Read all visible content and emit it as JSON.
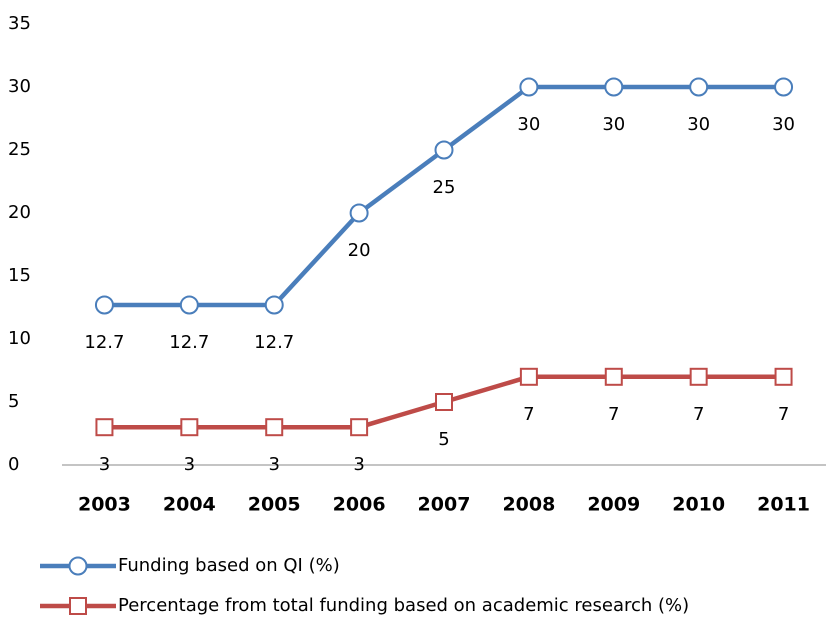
{
  "chart_data": {
    "type": "line",
    "categories": [
      "2003",
      "2004",
      "2005",
      "2006",
      "2007",
      "2008",
      "2009",
      "2010",
      "2011"
    ],
    "series": [
      {
        "name": "Funding based on QI (%)",
        "color": "#4a7ebb",
        "marker": "circle",
        "values": [
          12.7,
          12.7,
          12.7,
          20,
          25,
          30,
          30,
          30,
          30
        ]
      },
      {
        "name": "Percentage from total funding based on academic research (%)",
        "color": "#be4b48",
        "marker": "square",
        "values": [
          3,
          3,
          3,
          3,
          5,
          7,
          7,
          7,
          7
        ]
      }
    ],
    "ylim": [
      0,
      35
    ],
    "yticks": [
      0,
      5,
      10,
      15,
      20,
      25,
      30,
      35
    ],
    "grid": false,
    "data_labels": true,
    "legend": "bottom"
  }
}
